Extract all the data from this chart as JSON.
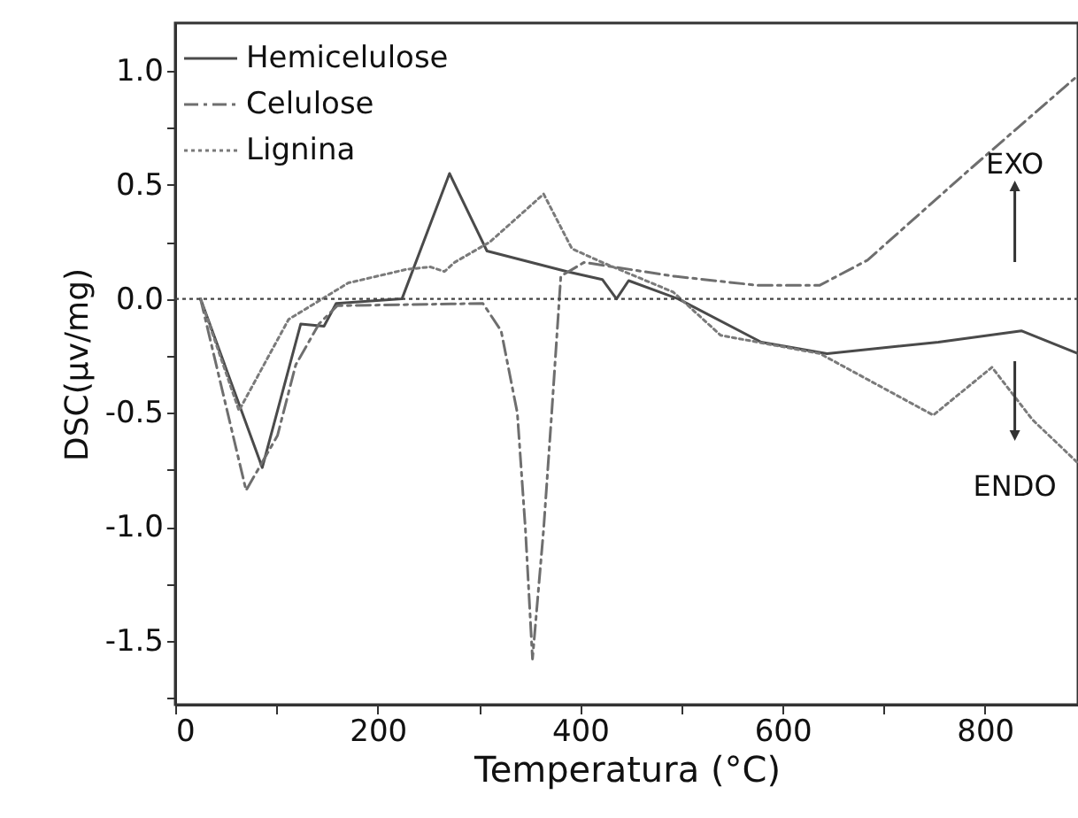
{
  "chart_data": {
    "type": "line",
    "xlabel": "Temperatura (°C)",
    "ylabel": "DSC(μv/mg)",
    "xlim": [
      0,
      892
    ],
    "ylim": [
      -1.78,
      1.21
    ],
    "xticks": [
      0,
      {
        "value": 100,
        "label": null
      },
      200,
      {
        "value": 300,
        "label": null
      },
      400,
      {
        "value": 500,
        "label": null
      },
      600,
      {
        "value": 700,
        "label": null
      },
      800
    ],
    "yticks": [
      {
        "value": -1.75,
        "label": null
      },
      -1.5,
      {
        "value": -1.25,
        "label": null
      },
      {
        "value": -1,
        "label": "-1.0"
      },
      {
        "value": -0.75,
        "label": null
      },
      -0.5,
      {
        "value": -0.25,
        "label": null
      },
      {
        "value": 0,
        "label": "0.0"
      },
      {
        "value": 0.25,
        "label": null
      },
      0.5,
      {
        "value": 0.75,
        "label": null
      },
      {
        "value": 1,
        "label": "1.0"
      }
    ],
    "legend": "top left",
    "grid": false,
    "marker": "none",
    "ref_lines": [
      {
        "axis": "y",
        "value": 0,
        "line_style": "dotted",
        "color": "#444444"
      }
    ],
    "annotations": [
      "EXO",
      "ENDO"
    ],
    "series": [
      {
        "name": "Hemicelulose",
        "color": "#4a4a4a",
        "line_style": "solid",
        "x": [
          25,
          86,
          124,
          147,
          159,
          224,
          271,
          308,
          387,
          422,
          436,
          448,
          497,
          579,
          644,
          754,
          836,
          892
        ],
        "values": [
          0,
          -0.74,
          -0.11,
          -0.12,
          -0.02,
          0.0,
          0.55,
          0.21,
          0.12,
          0.085,
          0.0,
          0.08,
          0.0,
          -0.19,
          -0.24,
          -0.19,
          -0.14,
          -0.24
        ]
      },
      {
        "name": "Celulose",
        "color": "#6e6e6e",
        "line_style": "dashed",
        "x": [
          25,
          70,
          101,
          119,
          142,
          160,
          304,
          322,
          338,
          346,
          353,
          364,
          372,
          381,
          404,
          492,
          574,
          637,
          684,
          783,
          892
        ],
        "values": [
          0,
          -0.84,
          -0.6,
          -0.29,
          -0.11,
          -0.03,
          -0.02,
          -0.14,
          -0.5,
          -1.01,
          -1.58,
          -1.01,
          -0.5,
          0.1,
          0.16,
          0.1,
          0.06,
          0.06,
          0.17,
          0.56,
          0.98
        ]
      },
      {
        "name": "Lignina",
        "color": "#7a7a7a",
        "line_style": "dotted",
        "x": [
          25,
          63,
          112,
          171,
          229,
          252,
          266,
          276,
          311,
          364,
          392,
          422,
          492,
          539,
          637,
          749,
          807,
          847,
          892
        ],
        "values": [
          0,
          -0.49,
          -0.09,
          0.07,
          0.13,
          0.14,
          0.12,
          0.16,
          0.25,
          0.46,
          0.22,
          0.16,
          0.03,
          -0.16,
          -0.24,
          -0.51,
          -0.3,
          -0.53,
          -0.72
        ]
      }
    ]
  }
}
